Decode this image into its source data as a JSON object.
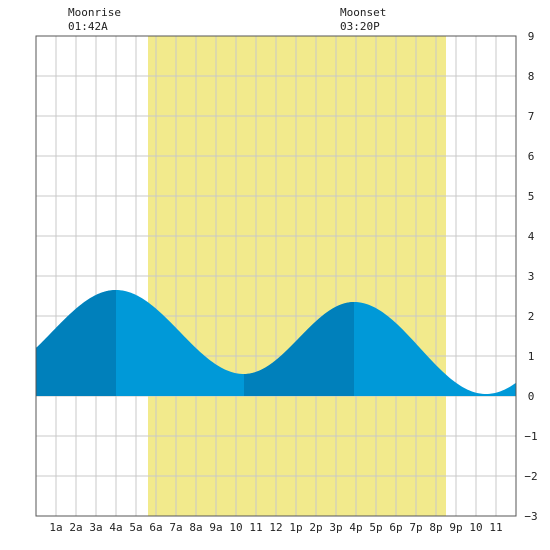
{
  "colors": {
    "daylight": "#f2ea8c",
    "tide_light": "#0099d8",
    "tide_dark": "#0080bb",
    "grid": "#c8c8c8",
    "frame": "#555555",
    "background": "#ffffff"
  },
  "moon": {
    "rise_label": "Moonrise",
    "rise_time": "01:42A",
    "set_label": "Moonset",
    "set_time": "03:20P"
  },
  "chart_data": {
    "type": "area",
    "title": "",
    "xlabel": "",
    "ylabel": "",
    "xlim": [
      0,
      24
    ],
    "ylim": [
      -3,
      9
    ],
    "y_ticks": [
      -3,
      -2,
      -1,
      0,
      1,
      2,
      3,
      4,
      5,
      6,
      7,
      8,
      9
    ],
    "x_ticks": [
      {
        "h": 1,
        "label": "1a"
      },
      {
        "h": 2,
        "label": "2a"
      },
      {
        "h": 3,
        "label": "3a"
      },
      {
        "h": 4,
        "label": "4a"
      },
      {
        "h": 5,
        "label": "5a"
      },
      {
        "h": 6,
        "label": "6a"
      },
      {
        "h": 7,
        "label": "7a"
      },
      {
        "h": 8,
        "label": "8a"
      },
      {
        "h": 9,
        "label": "9a"
      },
      {
        "h": 10,
        "label": "10"
      },
      {
        "h": 11,
        "label": "11"
      },
      {
        "h": 12,
        "label": "12"
      },
      {
        "h": 13,
        "label": "1p"
      },
      {
        "h": 14,
        "label": "2p"
      },
      {
        "h": 15,
        "label": "3p"
      },
      {
        "h": 16,
        "label": "4p"
      },
      {
        "h": 17,
        "label": "5p"
      },
      {
        "h": 18,
        "label": "6p"
      },
      {
        "h": 19,
        "label": "7p"
      },
      {
        "h": 20,
        "label": "8p"
      },
      {
        "h": 21,
        "label": "9p"
      },
      {
        "h": 22,
        "label": "10"
      },
      {
        "h": 23,
        "label": "11"
      }
    ],
    "daylight": {
      "start": 5.6,
      "end": 20.5
    },
    "dark_bands": [
      [
        0,
        4.0
      ],
      [
        10.4,
        15.9
      ]
    ],
    "tide_extremes": [
      {
        "x": 4.0,
        "y": 2.65
      },
      {
        "x": 10.4,
        "y": 0.55
      },
      {
        "x": 15.9,
        "y": 2.35
      },
      {
        "x": 22.5,
        "y": 0.05
      }
    ],
    "tide_start": {
      "x": 0,
      "y": 1.15
    },
    "tide_end": {
      "x": 24,
      "y": 0.5
    }
  }
}
